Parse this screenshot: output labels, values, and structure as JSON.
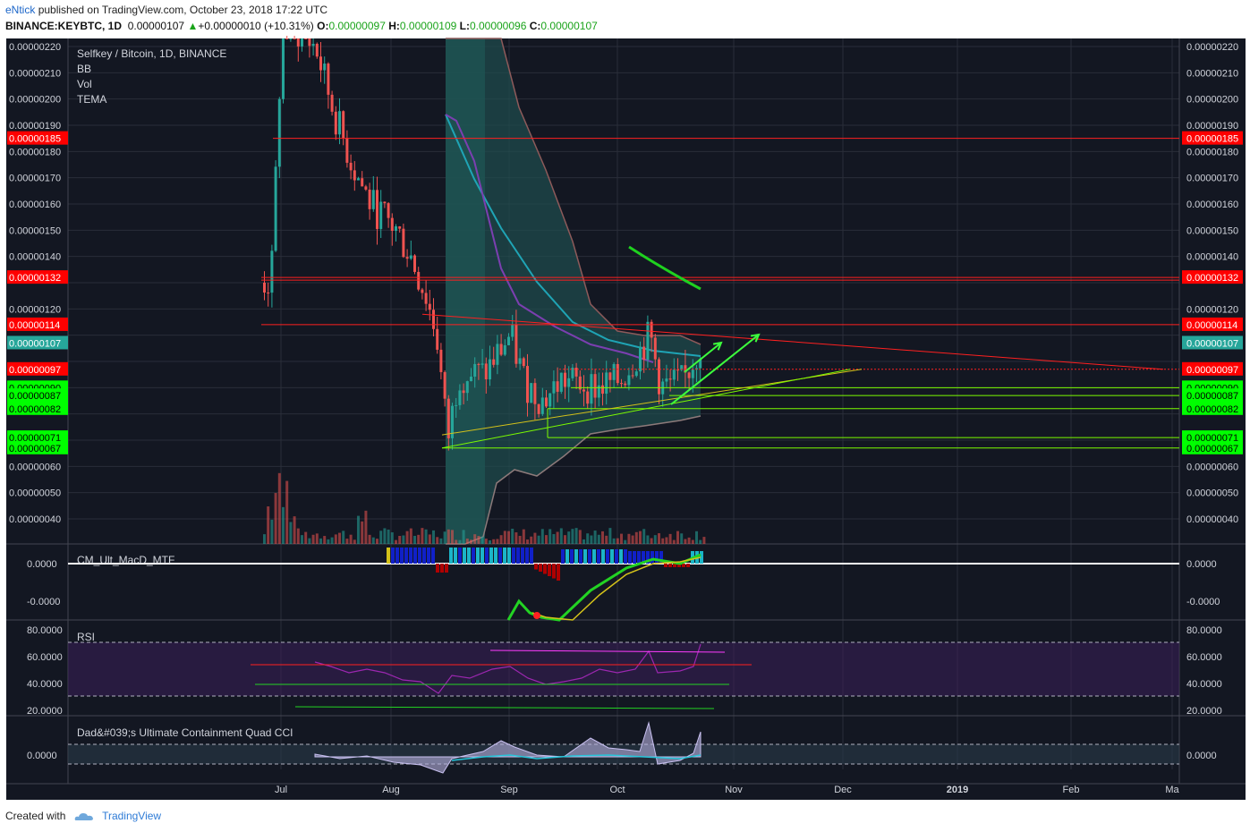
{
  "header": {
    "user": "eNtick",
    "published_text": "published on TradingView.com, October 23, 2018 17:22 UTC",
    "symbol": "BINANCE:KEYBTC, 1D",
    "price": "0.00000107",
    "change": "+0.00000010 (+10.31%)",
    "o_label": "O:",
    "o_value": "0.00000097",
    "h_label": "H:",
    "h_value": "0.00000109",
    "l_label": "L:",
    "l_value": "0.00000096",
    "c_label": "C:",
    "c_value": "0.00000107"
  },
  "legend": {
    "title": "Selfkey / Bitcoin, 1D, BINANCE",
    "items": [
      "BB",
      "Vol",
      "TEMA"
    ]
  },
  "panes": {
    "macd_title": "CM_Ult_MacD_MTF",
    "rsi_title": "RSI",
    "cci_title": "Dad&#039;s Ultimate Containment Quad CCI",
    "macd_ticks": [
      "0.0000",
      "-0.0000"
    ],
    "rsi_ticks": [
      "80.0000",
      "60.0000",
      "40.0000",
      "20.0000"
    ],
    "cci_ticks": [
      "0.0000"
    ]
  },
  "price_axis": {
    "ticks": [
      "0.00000220",
      "0.00000210",
      "0.00000200",
      "0.00000190",
      "0.00000180",
      "0.00000170",
      "0.00000160",
      "0.00000150",
      "0.00000140",
      "0.00000120",
      "0.00000060",
      "0.00000050",
      "0.00000040"
    ],
    "markers": [
      {
        "value": "0.00000185",
        "color": "#ff0000"
      },
      {
        "value": "0.00000132",
        "color": "#ff0000"
      },
      {
        "value": "0.00000114",
        "color": "#ff0000"
      },
      {
        "value": "0.00000107",
        "color": "#26a69a"
      },
      {
        "value": "0.00000097",
        "color": "#ff0000"
      },
      {
        "value": "0.00000090",
        "color": "#00ff00"
      },
      {
        "value": "0.00000087",
        "color": "#00ff00"
      },
      {
        "value": "0.00000082",
        "color": "#00ff00"
      },
      {
        "value": "0.00000071",
        "color": "#00ff00"
      },
      {
        "value": "0.00000067",
        "color": "#00ff00"
      }
    ]
  },
  "time_axis": {
    "labels": [
      "Jul",
      "Aug",
      "Sep",
      "Oct",
      "Nov",
      "Dec",
      "2019",
      "Feb",
      "Ma"
    ]
  },
  "colors": {
    "background": "#131722",
    "up_candle": "#26a69a",
    "down_candle": "#ef5350",
    "bb_fill": "#1c5a5a",
    "resistance": "#ff0000",
    "support": "#00ff00"
  },
  "chart_data": {
    "type": "candlestick",
    "title": "Selfkey / Bitcoin, 1D, BINANCE",
    "x_range": [
      "2018-06-25",
      "2019-03-01"
    ],
    "ylim": [
      3e-07,
      2.25e-06
    ],
    "close_path": [
      {
        "date": "2018-06-28",
        "price": 1.3e-06
      },
      {
        "date": "2018-07-01",
        "price": 2.3e-06
      },
      {
        "date": "2018-07-10",
        "price": 2.2e-06
      },
      {
        "date": "2018-07-15",
        "price": 1.95e-06
      },
      {
        "date": "2018-07-20",
        "price": 1.75e-06
      },
      {
        "date": "2018-07-25",
        "price": 1.6e-06
      },
      {
        "date": "2018-08-01",
        "price": 1.5e-06
      },
      {
        "date": "2018-08-05",
        "price": 1.4e-06
      },
      {
        "date": "2018-08-09",
        "price": 1.25e-06
      },
      {
        "date": "2018-08-12",
        "price": 1.1e-06
      },
      {
        "date": "2018-08-15",
        "price": 7e-07
      },
      {
        "date": "2018-08-18",
        "price": 9.5e-07
      },
      {
        "date": "2018-08-25",
        "price": 9.5e-07
      },
      {
        "date": "2018-09-01",
        "price": 1.1e-06
      },
      {
        "date": "2018-09-05",
        "price": 9.2e-07
      },
      {
        "date": "2018-09-10",
        "price": 8.5e-07
      },
      {
        "date": "2018-09-15",
        "price": 9.3e-07
      },
      {
        "date": "2018-09-25",
        "price": 9e-07
      },
      {
        "date": "2018-10-01",
        "price": 9.3e-07
      },
      {
        "date": "2018-10-09",
        "price": 1.1e-06
      },
      {
        "date": "2018-10-12",
        "price": 9e-07
      },
      {
        "date": "2018-10-18",
        "price": 9.2e-07
      },
      {
        "date": "2018-10-23",
        "price": 1.07e-06
      }
    ],
    "horizontal_levels": [
      1.85e-06,
      1.32e-06,
      1.14e-06,
      9.7e-07,
      9e-07,
      8.7e-07,
      8.2e-07,
      7.1e-07,
      6.7e-07
    ],
    "ohlc_last": {
      "open": 9.7e-07,
      "high": 1.09e-06,
      "low": 9.6e-07,
      "close": 1.07e-06
    }
  }
}
